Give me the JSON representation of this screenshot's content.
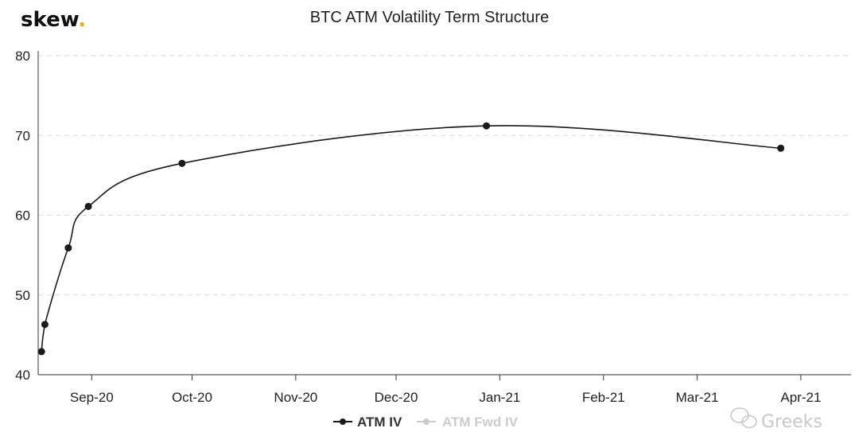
{
  "brand": {
    "logo": "skew.",
    "logo_dot_color": "#e8a92b"
  },
  "watermark": {
    "text": "Greeks",
    "icon": "wechat-bubbles-icon"
  },
  "colors": {
    "series_line": "#1a1a1a",
    "grid": "#d9d9d9",
    "axis": "#333333",
    "inactive_legend": "#cccccc"
  },
  "chart_data": {
    "type": "line",
    "title": "BTC ATM Volatility Term Structure",
    "xlabel": "",
    "ylabel": "",
    "x_axis": {
      "type": "date",
      "range": [
        "2020-08-16",
        "2021-04-16"
      ],
      "ticks": [
        {
          "date": "2020-09-01",
          "label": "Sep-20"
        },
        {
          "date": "2020-10-01",
          "label": "Oct-20"
        },
        {
          "date": "2020-11-01",
          "label": "Nov-20"
        },
        {
          "date": "2020-12-01",
          "label": "Dec-20"
        },
        {
          "date": "2021-01-01",
          "label": "Jan-21"
        },
        {
          "date": "2021-02-01",
          "label": "Feb-21"
        },
        {
          "date": "2021-03-01",
          "label": "Mar-21"
        },
        {
          "date": "2021-04-01",
          "label": "Apr-21"
        }
      ]
    },
    "y_axis": {
      "range": [
        40,
        80
      ],
      "ticks": [
        40,
        50,
        60,
        70,
        80
      ]
    },
    "grid": "horizontal dashed",
    "legend": {
      "position": "bottom-center"
    },
    "series": [
      {
        "name": "ATM IV",
        "active": true,
        "points": [
          {
            "x": "2020-08-17",
            "y": 42.9
          },
          {
            "x": "2020-08-18",
            "y": 46.3
          },
          {
            "x": "2020-08-25",
            "y": 55.9
          },
          {
            "x": "2020-08-31",
            "y": 61.1
          },
          {
            "x": "2020-09-28",
            "y": 66.5
          },
          {
            "x": "2020-12-28",
            "y": 71.2
          },
          {
            "x": "2021-03-26",
            "y": 68.4
          }
        ]
      },
      {
        "name": "ATM Fwd IV",
        "active": false,
        "points": []
      }
    ]
  }
}
